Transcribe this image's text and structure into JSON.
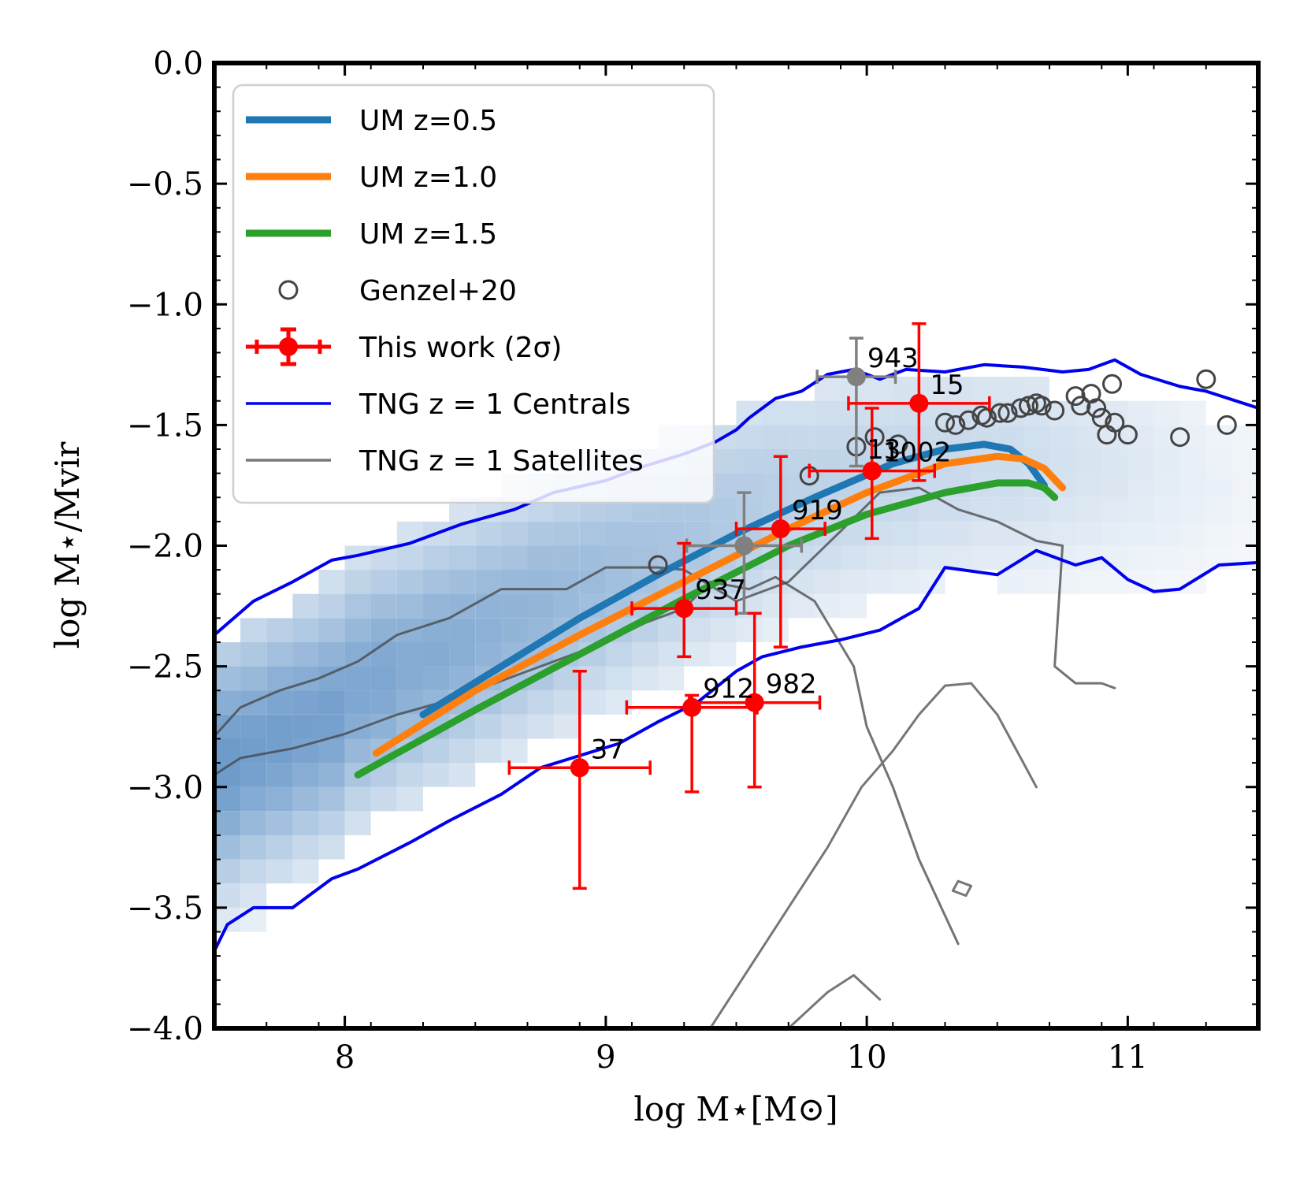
{
  "chart_data": {
    "type": "scatter",
    "xlabel": "log M⋆[M⊙]",
    "ylabel": "log M⋆/Mvir",
    "xlim": [
      7.5,
      11.5
    ],
    "ylim": [
      -4.0,
      0.0
    ],
    "xticks": [
      8,
      9,
      10,
      11
    ],
    "xtick_labels": [
      "8",
      "9",
      "10",
      "11"
    ],
    "yticks": [
      0.0,
      -0.5,
      -1.0,
      -1.5,
      -2.0,
      -2.5,
      -3.0,
      -3.5,
      -4.0
    ],
    "ytick_labels": [
      "0.0",
      "−0.5",
      "−1.0",
      "−1.5",
      "−2.0",
      "−2.5",
      "−3.0",
      "−3.5",
      "−4.0"
    ],
    "legend_position": "top-left",
    "legend": [
      {
        "label": "UM z=0.5",
        "style": "thick-line",
        "color": "#1f77b4"
      },
      {
        "label": "UM z=1.0",
        "style": "thick-line",
        "color": "#ff7f0e"
      },
      {
        "label": "UM z=1.5",
        "style": "thick-line",
        "color": "#2ca02c"
      },
      {
        "label": "Genzel+20",
        "style": "open-circle",
        "color": "#444444"
      },
      {
        "label": "This work (2σ)",
        "style": "errorbar",
        "color": "#ff0000"
      },
      {
        "label": "TNG z = 1 Centrals",
        "style": "line",
        "color": "#0000ee"
      },
      {
        "label": "TNG z = 1 Satellites",
        "style": "line",
        "color": "#777777"
      }
    ],
    "series": [
      {
        "name": "UM z=0.5",
        "color": "#1f77b4",
        "x": [
          8.3,
          8.6,
          8.9,
          9.2,
          9.5,
          9.8,
          10.1,
          10.3,
          10.45,
          10.55,
          10.62,
          10.68
        ],
        "y": [
          -2.7,
          -2.5,
          -2.3,
          -2.12,
          -1.95,
          -1.8,
          -1.66,
          -1.6,
          -1.58,
          -1.6,
          -1.66,
          -1.75
        ]
      },
      {
        "name": "UM z=1.0",
        "color": "#ff7f0e",
        "x": [
          8.12,
          8.5,
          8.9,
          9.3,
          9.7,
          10.0,
          10.3,
          10.5,
          10.6,
          10.68,
          10.75
        ],
        "y": [
          -2.86,
          -2.6,
          -2.37,
          -2.15,
          -1.93,
          -1.78,
          -1.66,
          -1.63,
          -1.64,
          -1.68,
          -1.76
        ]
      },
      {
        "name": "UM z=1.5",
        "color": "#2ca02c",
        "x": [
          8.05,
          8.5,
          8.9,
          9.3,
          9.7,
          10.0,
          10.3,
          10.5,
          10.62,
          10.68,
          10.72
        ],
        "y": [
          -2.95,
          -2.68,
          -2.45,
          -2.22,
          -2.0,
          -1.87,
          -1.78,
          -1.74,
          -1.74,
          -1.76,
          -1.8
        ]
      }
    ],
    "genzel20": {
      "x": [
        9.2,
        9.78,
        9.96,
        10.03,
        10.12,
        10.3,
        10.34,
        10.39,
        10.44,
        10.46,
        10.51,
        10.54,
        10.59,
        10.62,
        10.65,
        10.67,
        10.72,
        10.8,
        10.82,
        10.86,
        10.88,
        10.9,
        10.92,
        10.94,
        10.95,
        11.0,
        11.2,
        11.3,
        11.38
      ],
      "y": [
        -2.08,
        -1.71,
        -1.59,
        -1.55,
        -1.58,
        -1.49,
        -1.5,
        -1.48,
        -1.46,
        -1.47,
        -1.45,
        -1.45,
        -1.43,
        -1.42,
        -1.41,
        -1.42,
        -1.44,
        -1.38,
        -1.42,
        -1.37,
        -1.43,
        -1.47,
        -1.54,
        -1.33,
        -1.49,
        -1.54,
        -1.55,
        -1.31,
        -1.5
      ]
    },
    "this_work": [
      {
        "label": "37",
        "x": 8.9,
        "y": -2.92,
        "xerr": 0.27,
        "yerr_lo": 0.5,
        "yerr_hi": 0.4
      },
      {
        "label": "912",
        "x": 9.33,
        "y": -2.67,
        "xerr": 0.25,
        "yerr_lo": 0.35,
        "yerr_hi": 0.05
      },
      {
        "label": "982",
        "x": 9.57,
        "y": -2.65,
        "xerr": 0.25,
        "yerr_lo": 0.35,
        "yerr_hi": 0.37
      },
      {
        "label": "937",
        "x": 9.3,
        "y": -2.26,
        "xerr": 0.2,
        "yerr_lo": 0.2,
        "yerr_hi": 0.27
      },
      {
        "label": "919",
        "x": 9.67,
        "y": -1.93,
        "xerr": 0.17,
        "yerr_lo": 0.49,
        "yerr_hi": 0.3
      },
      {
        "label": "1002",
        "x": 10.02,
        "y": -1.69,
        "xerr": 0.24,
        "yerr_lo": 0.28,
        "yerr_hi": 0.26
      },
      {
        "label": "15",
        "x": 10.2,
        "y": -1.41,
        "xerr": 0.27,
        "yerr_lo": 0.32,
        "yerr_hi": 0.33
      }
    ],
    "this_work_gray": [
      {
        "label": "943",
        "x": 9.96,
        "y": -1.3,
        "xerr": 0.15,
        "yerr_lo": 0.37,
        "yerr_hi": 0.16
      },
      {
        "label": "",
        "x": 9.53,
        "y": -2.0,
        "xerr": 0.22,
        "yerr_lo": 0.28,
        "yerr_hi": 0.22
      }
    ],
    "extra_label": {
      "text": "13",
      "x": 10.0,
      "y": -1.6
    },
    "tng_centrals_upper": {
      "x": [
        7.5,
        7.65,
        7.8,
        7.95,
        8.05,
        8.25,
        8.45,
        8.65,
        8.8,
        9.0,
        9.15,
        9.3,
        9.42,
        9.5,
        9.55,
        9.65,
        9.75,
        9.85,
        9.95,
        10.05,
        10.15,
        10.3,
        10.45,
        10.6,
        10.75,
        10.85,
        10.95,
        11.05,
        11.2,
        11.3,
        11.5
      ],
      "y": [
        -2.37,
        -2.23,
        -2.15,
        -2.06,
        -2.04,
        -1.99,
        -1.91,
        -1.85,
        -1.78,
        -1.73,
        -1.67,
        -1.62,
        -1.57,
        -1.52,
        -1.47,
        -1.39,
        -1.36,
        -1.29,
        -1.27,
        -1.31,
        -1.27,
        -1.28,
        -1.25,
        -1.26,
        -1.28,
        -1.27,
        -1.23,
        -1.29,
        -1.34,
        -1.36,
        -1.43
      ]
    },
    "tng_centrals_lower": {
      "x": [
        7.5,
        7.55,
        7.65,
        7.8,
        7.95,
        8.05,
        8.25,
        8.4,
        8.6,
        8.75,
        8.9,
        9.05,
        9.2,
        9.35,
        9.5,
        9.6,
        9.75,
        9.9,
        10.05,
        10.2,
        10.3,
        10.5,
        10.65,
        10.8,
        10.9,
        11.0,
        11.1,
        11.2,
        11.35,
        11.5
      ],
      "y": [
        -3.68,
        -3.57,
        -3.5,
        -3.5,
        -3.38,
        -3.34,
        -3.23,
        -3.14,
        -3.03,
        -2.92,
        -2.87,
        -2.82,
        -2.73,
        -2.65,
        -2.52,
        -2.46,
        -2.42,
        -2.39,
        -2.35,
        -2.26,
        -2.09,
        -2.12,
        -2.02,
        -2.08,
        -2.05,
        -2.14,
        -2.19,
        -2.18,
        -2.08,
        -2.07
      ]
    },
    "tng_satellites_upper": {
      "x": [
        7.5,
        7.6,
        7.75,
        7.9,
        8.05,
        8.2,
        8.4,
        8.6,
        8.85,
        9.0,
        9.2,
        9.3,
        9.5,
        9.7,
        9.9,
        10.05,
        10.2,
        10.35,
        10.5,
        10.65,
        10.75,
        10.72,
        10.8,
        10.9,
        10.95
      ],
      "y": [
        -2.79,
        -2.67,
        -2.6,
        -2.55,
        -2.48,
        -2.37,
        -2.3,
        -2.18,
        -2.18,
        -2.09,
        -2.09,
        -2.1,
        -2.23,
        -2.15,
        -1.94,
        -1.78,
        -1.76,
        -1.85,
        -1.9,
        -1.98,
        -2.0,
        -2.5,
        -2.57,
        -2.57,
        -2.59
      ]
    },
    "tng_satellites_lower": {
      "x": [
        7.5,
        7.6,
        7.8,
        8.0,
        8.2,
        8.4,
        8.6,
        8.8,
        9.0,
        9.15,
        9.3,
        9.4,
        9.55,
        9.65,
        9.8,
        9.95,
        10.0,
        10.1,
        10.2,
        10.35
      ],
      "y": [
        -2.95,
        -2.88,
        -2.84,
        -2.78,
        -2.7,
        -2.64,
        -2.56,
        -2.48,
        -2.4,
        -2.32,
        -2.26,
        -2.15,
        -2.18,
        -2.13,
        -2.23,
        -2.5,
        -2.75,
        -3.0,
        -3.3,
        -3.65
      ]
    },
    "tng_satellites_inner": {
      "x": [
        9.4,
        9.55,
        9.7,
        9.85,
        9.98,
        10.1,
        10.2,
        10.3,
        10.4,
        10.5,
        10.6,
        10.65
      ],
      "y": [
        -4.0,
        -3.75,
        -3.5,
        -3.25,
        -3.0,
        -2.85,
        -2.7,
        -2.58,
        -2.57,
        -2.7,
        -2.9,
        -3.0
      ]
    },
    "tng_satellites_small_1": {
      "x": [
        9.7,
        9.85,
        9.95,
        10.05
      ],
      "y": [
        -4.0,
        -3.85,
        -3.78,
        -3.88
      ]
    },
    "tng_satellites_small_2": {
      "x": [
        10.33,
        10.38,
        10.4,
        10.35,
        10.33
      ],
      "y": [
        -3.43,
        -3.45,
        -3.41,
        -3.39,
        -3.43
      ]
    },
    "density": {
      "x0": 7.5,
      "dx": 0.1,
      "y0": -0.2,
      "dy": 0.1,
      "columns": [
        {
          "x": 7.5,
          "ylo": -3.6,
          "yhi": -2.4,
          "peak": -2.9,
          "amp": 0.75
        },
        {
          "x": 7.6,
          "ylo": -3.6,
          "yhi": -2.3,
          "peak": -2.85,
          "amp": 0.72
        },
        {
          "x": 7.7,
          "ylo": -3.4,
          "yhi": -2.3,
          "peak": -2.8,
          "amp": 0.72
        },
        {
          "x": 7.8,
          "ylo": -3.4,
          "yhi": -2.2,
          "peak": -2.75,
          "amp": 0.7
        },
        {
          "x": 7.9,
          "ylo": -3.3,
          "yhi": -2.1,
          "peak": -2.7,
          "amp": 0.7
        },
        {
          "x": 8.0,
          "ylo": -3.2,
          "yhi": -2.0,
          "peak": -2.6,
          "amp": 0.66
        },
        {
          "x": 8.1,
          "ylo": -3.1,
          "yhi": -2.0,
          "peak": -2.55,
          "amp": 0.66
        },
        {
          "x": 8.2,
          "ylo": -3.1,
          "yhi": -1.9,
          "peak": -2.5,
          "amp": 0.62
        },
        {
          "x": 8.3,
          "ylo": -3.0,
          "yhi": -1.9,
          "peak": -2.45,
          "amp": 0.62
        },
        {
          "x": 8.4,
          "ylo": -3.0,
          "yhi": -1.8,
          "peak": -2.4,
          "amp": 0.6
        },
        {
          "x": 8.5,
          "ylo": -2.9,
          "yhi": -1.8,
          "peak": -2.35,
          "amp": 0.58
        },
        {
          "x": 8.6,
          "ylo": -2.9,
          "yhi": -1.7,
          "peak": -2.3,
          "amp": 0.56
        },
        {
          "x": 8.7,
          "ylo": -2.8,
          "yhi": -1.7,
          "peak": -2.25,
          "amp": 0.55
        },
        {
          "x": 8.8,
          "ylo": -2.8,
          "yhi": -1.6,
          "peak": -2.2,
          "amp": 0.52
        },
        {
          "x": 8.9,
          "ylo": -2.7,
          "yhi": -1.6,
          "peak": -2.15,
          "amp": 0.5
        },
        {
          "x": 9.0,
          "ylo": -2.7,
          "yhi": -1.6,
          "peak": -2.1,
          "amp": 0.48
        },
        {
          "x": 9.1,
          "ylo": -2.6,
          "yhi": -1.6,
          "peak": -2.05,
          "amp": 0.46
        },
        {
          "x": 9.2,
          "ylo": -2.6,
          "yhi": -1.5,
          "peak": -2.0,
          "amp": 0.44
        },
        {
          "x": 9.3,
          "ylo": -2.5,
          "yhi": -1.5,
          "peak": -1.95,
          "amp": 0.42
        },
        {
          "x": 9.4,
          "ylo": -2.5,
          "yhi": -1.5,
          "peak": -1.9,
          "amp": 0.4
        },
        {
          "x": 9.5,
          "ylo": -2.4,
          "yhi": -1.4,
          "peak": -1.85,
          "amp": 0.38
        },
        {
          "x": 9.6,
          "ylo": -2.4,
          "yhi": -1.4,
          "peak": -1.8,
          "amp": 0.36
        },
        {
          "x": 9.7,
          "ylo": -2.3,
          "yhi": -1.4,
          "peak": -1.78,
          "amp": 0.34
        },
        {
          "x": 9.8,
          "ylo": -2.3,
          "yhi": -1.3,
          "peak": -1.75,
          "amp": 0.33
        },
        {
          "x": 9.9,
          "ylo": -2.3,
          "yhi": -1.3,
          "peak": -1.72,
          "amp": 0.32
        },
        {
          "x": 10.0,
          "ylo": -2.2,
          "yhi": -1.3,
          "peak": -1.7,
          "amp": 0.3
        },
        {
          "x": 10.1,
          "ylo": -2.2,
          "yhi": -1.3,
          "peak": -1.68,
          "amp": 0.3
        },
        {
          "x": 10.2,
          "ylo": -2.2,
          "yhi": -1.3,
          "peak": -1.66,
          "amp": 0.28
        },
        {
          "x": 10.3,
          "ylo": -2.1,
          "yhi": -1.3,
          "peak": -1.65,
          "amp": 0.28
        },
        {
          "x": 10.4,
          "ylo": -2.1,
          "yhi": -1.3,
          "peak": -1.64,
          "amp": 0.26
        },
        {
          "x": 10.5,
          "ylo": -2.2,
          "yhi": -1.3,
          "peak": -1.64,
          "amp": 0.26
        },
        {
          "x": 10.6,
          "ylo": -2.2,
          "yhi": -1.3,
          "peak": -1.64,
          "amp": 0.24
        },
        {
          "x": 10.7,
          "ylo": -2.2,
          "yhi": -1.4,
          "peak": -1.64,
          "amp": 0.22
        },
        {
          "x": 10.8,
          "ylo": -2.2,
          "yhi": -1.4,
          "peak": -1.65,
          "amp": 0.2
        },
        {
          "x": 10.9,
          "ylo": -2.2,
          "yhi": -1.4,
          "peak": -1.66,
          "amp": 0.18
        },
        {
          "x": 11.0,
          "ylo": -2.2,
          "yhi": -1.4,
          "peak": -1.67,
          "amp": 0.16
        },
        {
          "x": 11.1,
          "ylo": -2.2,
          "yhi": -1.4,
          "peak": -1.68,
          "amp": 0.14
        },
        {
          "x": 11.2,
          "ylo": -2.2,
          "yhi": -1.4,
          "peak": -1.7,
          "amp": 0.12
        },
        {
          "x": 11.3,
          "ylo": -2.1,
          "yhi": -1.5,
          "peak": -1.72,
          "amp": 0.1
        },
        {
          "x": 11.4,
          "ylo": -2.1,
          "yhi": -1.5,
          "peak": -1.74,
          "amp": 0.08
        }
      ]
    }
  }
}
